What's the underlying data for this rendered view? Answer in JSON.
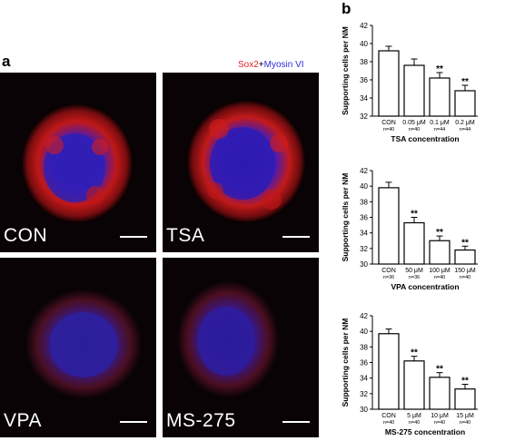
{
  "panel_a": {
    "letter": "a",
    "legend": {
      "red": "Sox2",
      "plus": "+",
      "blue": "Myosin VI"
    },
    "images": [
      {
        "label": "CON"
      },
      {
        "label": "TSA"
      },
      {
        "label": "VPA"
      },
      {
        "label": "MS-275"
      }
    ]
  },
  "panel_b": {
    "letter": "b"
  },
  "colors": {
    "sox2_red": "#e0282e",
    "myosin_blue": "#2b2bd6",
    "bar_fill": "#ffffff",
    "axis": "#000000"
  },
  "chart_data": [
    {
      "type": "bar",
      "ylabel": "Supporting cells per NM",
      "xlabel": "TSA concentration",
      "categories": [
        "CON",
        "0.05 μM",
        "0.1 μM",
        "0.2 μM"
      ],
      "n_labels": [
        "n=40",
        "n=40",
        "n=44",
        "n=44"
      ],
      "values": [
        39.2,
        37.6,
        36.2,
        34.8
      ],
      "errors": [
        0.5,
        0.7,
        0.6,
        0.6
      ],
      "significance": [
        "",
        "",
        "**",
        "**"
      ],
      "ylim": [
        32,
        42
      ],
      "yticks": [
        32,
        34,
        36,
        38,
        40,
        42
      ]
    },
    {
      "type": "bar",
      "ylabel": "Supporting cells per NM",
      "xlabel": "VPA concentration",
      "categories": [
        "CON",
        "50 μM",
        "100 μM",
        "150 μM"
      ],
      "n_labels": [
        "n=36",
        "n=36",
        "n=40",
        "n=40"
      ],
      "values": [
        39.8,
        35.3,
        33.0,
        31.8
      ],
      "errors": [
        0.7,
        0.7,
        0.6,
        0.5
      ],
      "significance": [
        "",
        "**",
        "**",
        "**"
      ],
      "ylim": [
        30,
        42
      ],
      "yticks": [
        30,
        32,
        34,
        36,
        38,
        40,
        42
      ]
    },
    {
      "type": "bar",
      "ylabel": "Supporting cells per NM",
      "xlabel": "MS-275 concentration",
      "categories": [
        "CON",
        "5 μM",
        "10 μM",
        "15 μM"
      ],
      "n_labels": [
        "n=40",
        "n=40",
        "n=40",
        "n=40"
      ],
      "values": [
        39.7,
        36.2,
        34.1,
        32.6
      ],
      "errors": [
        0.6,
        0.6,
        0.6,
        0.6
      ],
      "significance": [
        "",
        "**",
        "**",
        "**"
      ],
      "ylim": [
        30,
        42
      ],
      "yticks": [
        30,
        32,
        34,
        36,
        38,
        40,
        42
      ]
    }
  ]
}
